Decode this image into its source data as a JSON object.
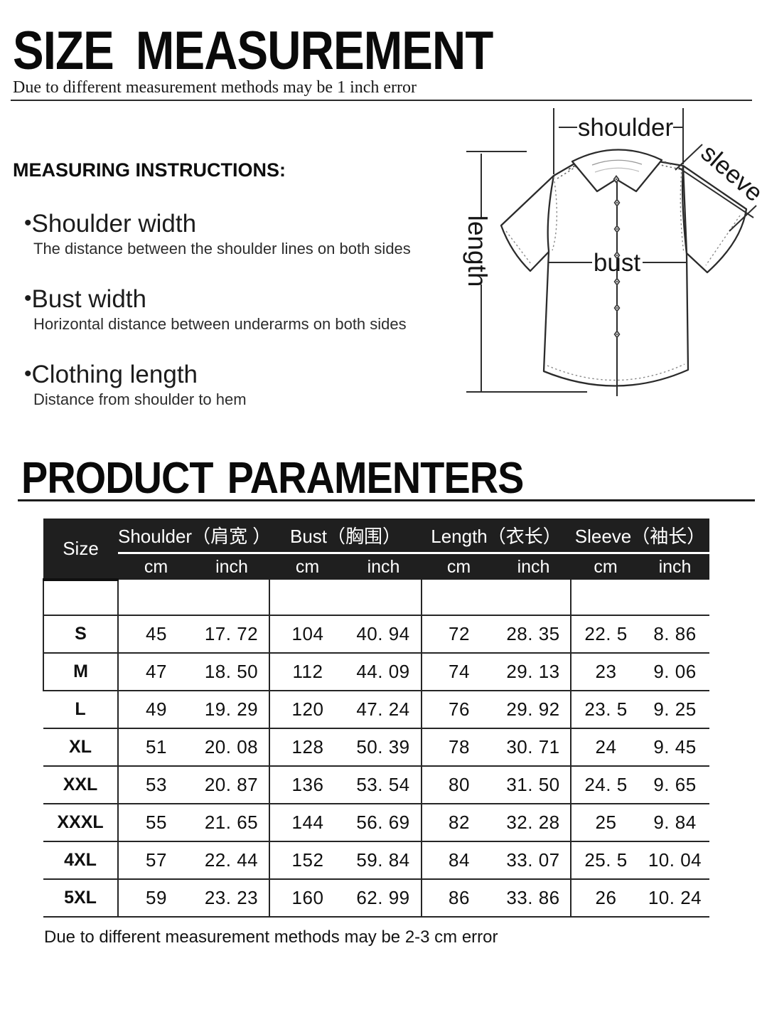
{
  "header": {
    "title": "SIZE  MEASUREMENT",
    "subtitle": "Due to different measurement methods may be 1 inch error"
  },
  "instructions": {
    "heading": "MEASURING INSTRUCTIONS:",
    "bullet": "•",
    "items": [
      {
        "term": "Shoulder width",
        "desc": "The distance between the shoulder lines on both sides"
      },
      {
        "term": "Bust width",
        "desc": "Horizontal distance between underarms on both sides"
      },
      {
        "term": "Clothing length",
        "desc": "Distance from shoulder to hem"
      }
    ]
  },
  "diagram": {
    "labels": {
      "shoulder": "shoulder",
      "sleeve": "sleeve",
      "length": "length",
      "bust": "bust"
    }
  },
  "parameters": {
    "heading": "PRODUCT PARAMENTERS",
    "table": {
      "size_header": "Size",
      "groups": [
        {
          "label": "Shoulder（肩宽 ）",
          "cm": "cm",
          "inch": "inch"
        },
        {
          "label": "Bust（胸围）",
          "cm": "cm",
          "inch": "inch"
        },
        {
          "label": "Length（衣长）",
          "cm": "cm",
          "inch": "inch"
        },
        {
          "label": "Sleeve（袖长）",
          "cm": "cm",
          "inch": "inch"
        }
      ],
      "row_keys": [
        "size",
        "shoulder_cm",
        "shoulder_inch",
        "bust_cm",
        "bust_inch",
        "length_cm",
        "length_inch",
        "sleeve_cm",
        "sleeve_inch"
      ],
      "rows": [
        {
          "size": "S",
          "shoulder_cm": "45",
          "shoulder_inch": "17. 72",
          "bust_cm": "104",
          "bust_inch": "40. 94",
          "length_cm": "72",
          "length_inch": "28. 35",
          "sleeve_cm": "22. 5",
          "sleeve_inch": "8. 86"
        },
        {
          "size": "M",
          "shoulder_cm": "47",
          "shoulder_inch": "18. 50",
          "bust_cm": "112",
          "bust_inch": "44. 09",
          "length_cm": "74",
          "length_inch": "29. 13",
          "sleeve_cm": "23",
          "sleeve_inch": "9. 06"
        },
        {
          "size": "L",
          "shoulder_cm": "49",
          "shoulder_inch": "19. 29",
          "bust_cm": "120",
          "bust_inch": "47. 24",
          "length_cm": "76",
          "length_inch": "29. 92",
          "sleeve_cm": "23. 5",
          "sleeve_inch": "9. 25"
        },
        {
          "size": "XL",
          "shoulder_cm": "51",
          "shoulder_inch": "20. 08",
          "bust_cm": "128",
          "bust_inch": "50. 39",
          "length_cm": "78",
          "length_inch": "30. 71",
          "sleeve_cm": "24",
          "sleeve_inch": "9. 45"
        },
        {
          "size": "XXL",
          "shoulder_cm": "53",
          "shoulder_inch": "20. 87",
          "bust_cm": "136",
          "bust_inch": "53. 54",
          "length_cm": "80",
          "length_inch": "31. 50",
          "sleeve_cm": "24. 5",
          "sleeve_inch": "9. 65"
        },
        {
          "size": "XXXL",
          "shoulder_cm": "55",
          "shoulder_inch": "21. 65",
          "bust_cm": "144",
          "bust_inch": "56. 69",
          "length_cm": "82",
          "length_inch": "32. 28",
          "sleeve_cm": "25",
          "sleeve_inch": "9. 84"
        },
        {
          "size": "4XL",
          "shoulder_cm": "57",
          "shoulder_inch": "22. 44",
          "bust_cm": "152",
          "bust_inch": "59. 84",
          "length_cm": "84",
          "length_inch": "33. 07",
          "sleeve_cm": "25. 5",
          "sleeve_inch": "10. 04"
        },
        {
          "size": "5XL",
          "shoulder_cm": "59",
          "shoulder_inch": "23. 23",
          "bust_cm": "160",
          "bust_inch": "62. 99",
          "length_cm": "86",
          "length_inch": "33. 86",
          "sleeve_cm": "26",
          "sleeve_inch": "10. 24"
        }
      ],
      "note": "Due to different measurement methods may be 2-3 cm error"
    }
  },
  "colors": {
    "header_bg": "#1f1f1f",
    "header_text": "#ffffff",
    "line": "#262626",
    "ink": "#111111"
  }
}
